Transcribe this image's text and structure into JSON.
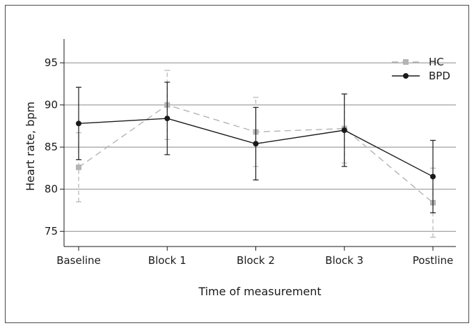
{
  "chart_data": {
    "type": "line",
    "title": "",
    "xlabel": "Time of measurement",
    "ylabel": "Heart rate, bpm",
    "categories": [
      "Baseline",
      "Block 1",
      "Block 2",
      "Block 3",
      "Postline"
    ],
    "ylim": [
      73.2,
      97
    ],
    "yticks": [
      75,
      80,
      85,
      90,
      95
    ],
    "grid": "horizontal",
    "legend_position": "top-right",
    "series": [
      {
        "name": "HC",
        "marker": "square",
        "line_style": "dashed",
        "color": "#b4b4b4",
        "values": [
          82.6,
          90.0,
          86.8,
          87.2,
          78.4
        ],
        "error_low": [
          78.5,
          85.9,
          82.7,
          83.1,
          74.3
        ],
        "error_high": [
          86.7,
          94.1,
          90.9,
          91.3,
          82.5
        ]
      },
      {
        "name": "BPD",
        "marker": "circle",
        "line_style": "solid",
        "color": "#1a1a1a",
        "values": [
          87.8,
          88.4,
          85.4,
          87.0,
          81.5
        ],
        "error_low": [
          83.5,
          84.1,
          81.1,
          82.7,
          77.2
        ],
        "error_high": [
          92.1,
          92.7,
          89.7,
          91.3,
          85.8
        ]
      }
    ]
  }
}
